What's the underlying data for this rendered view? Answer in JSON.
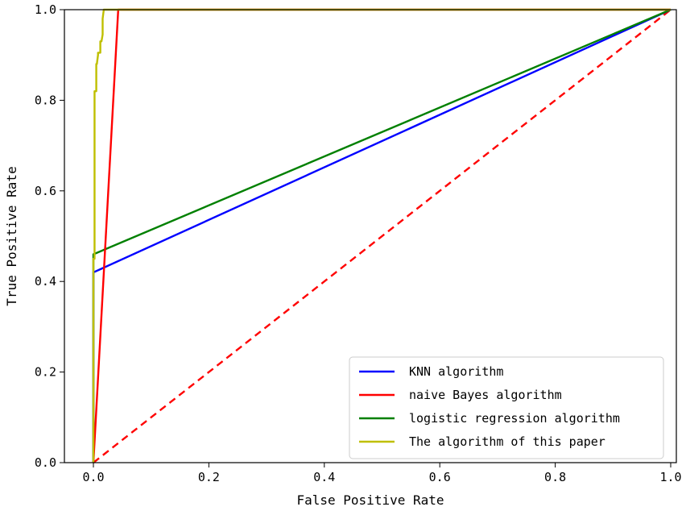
{
  "chart_data": {
    "type": "line",
    "title": "",
    "xlabel": "False Positive Rate",
    "ylabel": "True Positive Rate",
    "xlim": [
      0.0,
      1.0
    ],
    "ylim": [
      0.0,
      1.0
    ],
    "xticks": [
      0.0,
      0.2,
      0.4,
      0.6,
      0.8,
      1.0
    ],
    "yticks": [
      0.0,
      0.2,
      0.4,
      0.6,
      0.8,
      1.0
    ],
    "xtick_labels": [
      "0.0",
      "0.2",
      "0.4",
      "0.6",
      "0.8",
      "1.0"
    ],
    "ytick_labels": [
      "0.0",
      "0.2",
      "0.4",
      "0.6",
      "0.8",
      "1.0"
    ],
    "grid": false,
    "legend_position": "lower-right",
    "series": [
      {
        "name": "KNN algorithm",
        "color": "#0000ff",
        "style": "solid",
        "x": [
          0.0,
          0.0,
          1.0
        ],
        "y": [
          0.0,
          0.42,
          1.0
        ]
      },
      {
        "name": "naive Bayes algorithm",
        "color": "#ff0000",
        "style": "solid",
        "x": [
          0.0,
          0.043,
          1.0
        ],
        "y": [
          0.0,
          1.0,
          1.0
        ]
      },
      {
        "name": "logistic regression algorithm",
        "color": "#008000",
        "style": "solid",
        "x": [
          0.0,
          0.0,
          1.0
        ],
        "y": [
          0.0,
          0.46,
          1.0
        ]
      },
      {
        "name": "The algorithm of this paper",
        "color": "#bfbf00",
        "style": "solid",
        "x": [
          0.0,
          0.0,
          0.002,
          0.002,
          0.005,
          0.005,
          0.006,
          0.008,
          0.008,
          0.012,
          0.012,
          0.014,
          0.016,
          0.016,
          0.018,
          1.0
        ],
        "y": [
          0.0,
          0.45,
          0.45,
          0.82,
          0.82,
          0.88,
          0.88,
          0.9,
          0.905,
          0.905,
          0.93,
          0.93,
          0.945,
          0.98,
          1.0,
          1.0
        ]
      },
      {
        "name": "",
        "color": "#ff0000",
        "style": "dashed",
        "x": [
          0.0,
          1.0
        ],
        "y": [
          0.0,
          1.0
        ]
      }
    ]
  }
}
